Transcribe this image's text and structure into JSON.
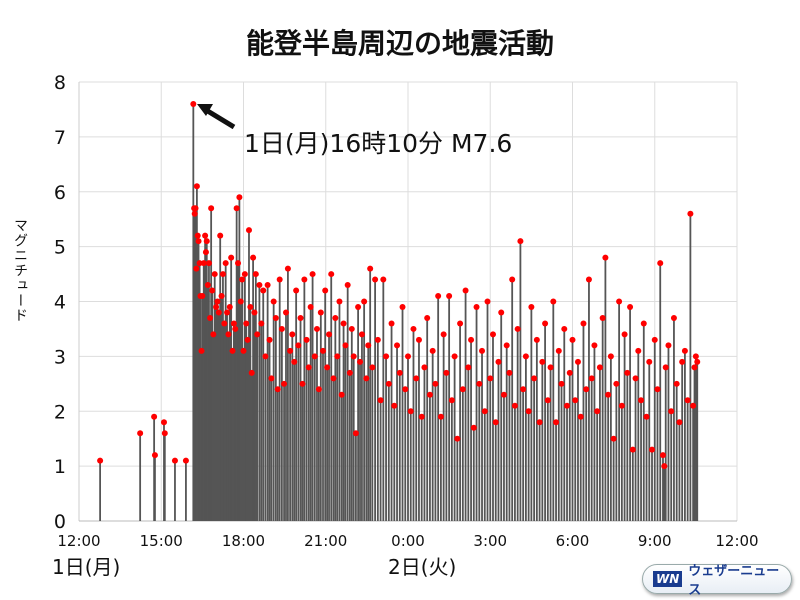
{
  "title": "能登半島周辺の地震活動",
  "annotation": "1日(月)16時10分 M7.6",
  "day_labels": [
    "1日(月)",
    "2日(火)"
  ],
  "logo": {
    "mark": "WN",
    "text": "ウェザーニュース"
  },
  "colors": {
    "point": "#ff0000",
    "stem": "#555555",
    "grid": "#dddddd"
  },
  "chart_data": {
    "type": "scatter",
    "title": "能登半島周辺の地震活動",
    "xlabel": "",
    "ylabel": "マグニチュード",
    "x_unit": "hours since 1日 12:00",
    "xlim": [
      0,
      24
    ],
    "ylim": [
      0,
      8
    ],
    "x_ticks": [
      0,
      3,
      6,
      9,
      12,
      15,
      18,
      21,
      24
    ],
    "x_tick_labels": [
      "12:00",
      "15:00",
      "18:00",
      "21:00",
      "0:00",
      "3:00",
      "6:00",
      "9:00",
      "12:00"
    ],
    "y_ticks": [
      0,
      1,
      2,
      3,
      4,
      5,
      6,
      7,
      8
    ],
    "y_tick_labels": [
      "0",
      "1",
      "2",
      "3",
      "4",
      "5",
      "6",
      "7",
      "8"
    ],
    "grid": true,
    "points": [
      [
        0.77,
        1.1
      ],
      [
        2.23,
        1.6
      ],
      [
        2.74,
        1.9
      ],
      [
        2.77,
        1.2
      ],
      [
        3.1,
        1.8
      ],
      [
        3.13,
        1.6
      ],
      [
        3.5,
        1.1
      ],
      [
        3.9,
        1.1
      ],
      [
        4.17,
        7.6
      ],
      [
        4.2,
        5.7
      ],
      [
        4.22,
        5.6
      ],
      [
        4.25,
        5.7
      ],
      [
        4.28,
        4.6
      ],
      [
        4.3,
        6.1
      ],
      [
        4.33,
        5.2
      ],
      [
        4.36,
        5.1
      ],
      [
        4.4,
        4.7
      ],
      [
        4.43,
        4.1
      ],
      [
        4.47,
        3.1
      ],
      [
        4.5,
        4.1
      ],
      [
        4.55,
        4.7
      ],
      [
        4.6,
        5.2
      ],
      [
        4.63,
        4.9
      ],
      [
        4.66,
        5.1
      ],
      [
        4.7,
        4.3
      ],
      [
        4.74,
        4.7
      ],
      [
        4.78,
        3.7
      ],
      [
        4.82,
        5.7
      ],
      [
        4.86,
        4.2
      ],
      [
        4.9,
        3.4
      ],
      [
        4.95,
        4.5
      ],
      [
        5.0,
        3.9
      ],
      [
        5.05,
        4.0
      ],
      [
        5.1,
        3.8
      ],
      [
        5.15,
        5.2
      ],
      [
        5.2,
        4.1
      ],
      [
        5.25,
        4.5
      ],
      [
        5.3,
        3.6
      ],
      [
        5.35,
        4.7
      ],
      [
        5.4,
        3.8
      ],
      [
        5.45,
        3.4
      ],
      [
        5.5,
        3.9
      ],
      [
        5.55,
        4.8
      ],
      [
        5.6,
        3.1
      ],
      [
        5.65,
        3.6
      ],
      [
        5.7,
        3.5
      ],
      [
        5.75,
        5.7
      ],
      [
        5.8,
        4.7
      ],
      [
        5.85,
        5.9
      ],
      [
        5.9,
        4.0
      ],
      [
        5.95,
        4.4
      ],
      [
        6.0,
        3.1
      ],
      [
        6.05,
        4.5
      ],
      [
        6.1,
        3.6
      ],
      [
        6.15,
        3.3
      ],
      [
        6.2,
        5.3
      ],
      [
        6.25,
        3.9
      ],
      [
        6.3,
        2.7
      ],
      [
        6.35,
        4.8
      ],
      [
        6.4,
        3.8
      ],
      [
        6.45,
        4.5
      ],
      [
        6.5,
        3.4
      ],
      [
        6.58,
        4.3
      ],
      [
        6.65,
        3.6
      ],
      [
        6.72,
        4.2
      ],
      [
        6.8,
        3.0
      ],
      [
        6.88,
        4.3
      ],
      [
        6.95,
        3.3
      ],
      [
        7.02,
        2.6
      ],
      [
        7.1,
        4.0
      ],
      [
        7.18,
        3.7
      ],
      [
        7.25,
        2.4
      ],
      [
        7.32,
        4.4
      ],
      [
        7.4,
        3.5
      ],
      [
        7.48,
        2.5
      ],
      [
        7.55,
        3.8
      ],
      [
        7.62,
        4.6
      ],
      [
        7.7,
        3.1
      ],
      [
        7.78,
        3.4
      ],
      [
        7.85,
        2.9
      ],
      [
        7.92,
        4.2
      ],
      [
        8.0,
        3.2
      ],
      [
        8.08,
        3.7
      ],
      [
        8.15,
        2.5
      ],
      [
        8.22,
        4.4
      ],
      [
        8.3,
        3.3
      ],
      [
        8.38,
        2.8
      ],
      [
        8.45,
        3.9
      ],
      [
        8.52,
        4.5
      ],
      [
        8.6,
        3.0
      ],
      [
        8.68,
        3.5
      ],
      [
        8.75,
        2.4
      ],
      [
        8.82,
        3.8
      ],
      [
        8.9,
        3.1
      ],
      [
        8.98,
        4.2
      ],
      [
        9.05,
        2.8
      ],
      [
        9.12,
        3.4
      ],
      [
        9.2,
        4.5
      ],
      [
        9.28,
        2.6
      ],
      [
        9.35,
        3.7
      ],
      [
        9.42,
        3.0
      ],
      [
        9.5,
        4.0
      ],
      [
        9.58,
        2.3
      ],
      [
        9.65,
        3.6
      ],
      [
        9.72,
        3.2
      ],
      [
        9.8,
        4.3
      ],
      [
        9.88,
        2.7
      ],
      [
        9.95,
        3.5
      ],
      [
        10.02,
        3.0
      ],
      [
        10.1,
        1.6
      ],
      [
        10.18,
        3.9
      ],
      [
        10.25,
        2.9
      ],
      [
        10.32,
        3.4
      ],
      [
        10.4,
        4.0
      ],
      [
        10.48,
        2.6
      ],
      [
        10.55,
        3.2
      ],
      [
        10.62,
        4.6
      ],
      [
        10.7,
        2.8
      ],
      [
        10.8,
        4.4
      ],
      [
        10.9,
        3.3
      ],
      [
        11.0,
        2.2
      ],
      [
        11.1,
        4.4
      ],
      [
        11.2,
        3.0
      ],
      [
        11.3,
        2.5
      ],
      [
        11.4,
        3.6
      ],
      [
        11.5,
        2.1
      ],
      [
        11.6,
        3.2
      ],
      [
        11.7,
        2.7
      ],
      [
        11.8,
        3.9
      ],
      [
        11.9,
        2.4
      ],
      [
        12.0,
        3.0
      ],
      [
        12.1,
        2.0
      ],
      [
        12.2,
        3.5
      ],
      [
        12.3,
        2.6
      ],
      [
        12.4,
        3.3
      ],
      [
        12.5,
        1.9
      ],
      [
        12.6,
        2.8
      ],
      [
        12.7,
        3.7
      ],
      [
        12.8,
        2.3
      ],
      [
        12.9,
        3.1
      ],
      [
        13.0,
        2.5
      ],
      [
        13.1,
        4.1
      ],
      [
        13.2,
        1.9
      ],
      [
        13.3,
        3.4
      ],
      [
        13.4,
        2.7
      ],
      [
        13.5,
        4.1
      ],
      [
        13.6,
        2.2
      ],
      [
        13.7,
        3.0
      ],
      [
        13.8,
        1.5
      ],
      [
        13.9,
        3.6
      ],
      [
        14.0,
        2.4
      ],
      [
        14.1,
        4.2
      ],
      [
        14.2,
        2.8
      ],
      [
        14.3,
        3.3
      ],
      [
        14.4,
        1.7
      ],
      [
        14.5,
        3.9
      ],
      [
        14.6,
        2.5
      ],
      [
        14.7,
        3.1
      ],
      [
        14.8,
        2.0
      ],
      [
        14.9,
        4.0
      ],
      [
        15.0,
        2.6
      ],
      [
        15.1,
        3.4
      ],
      [
        15.2,
        1.8
      ],
      [
        15.3,
        2.9
      ],
      [
        15.4,
        3.8
      ],
      [
        15.5,
        2.3
      ],
      [
        15.6,
        3.2
      ],
      [
        15.7,
        2.7
      ],
      [
        15.8,
        4.4
      ],
      [
        15.9,
        2.1
      ],
      [
        16.0,
        3.5
      ],
      [
        16.1,
        5.1
      ],
      [
        16.2,
        2.4
      ],
      [
        16.3,
        3.0
      ],
      [
        16.4,
        2.0
      ],
      [
        16.5,
        3.9
      ],
      [
        16.6,
        2.6
      ],
      [
        16.7,
        3.3
      ],
      [
        16.8,
        1.8
      ],
      [
        16.9,
        2.9
      ],
      [
        17.0,
        3.6
      ],
      [
        17.1,
        2.2
      ],
      [
        17.2,
        2.8
      ],
      [
        17.3,
        4.0
      ],
      [
        17.4,
        1.8
      ],
      [
        17.5,
        3.1
      ],
      [
        17.6,
        2.5
      ],
      [
        17.7,
        3.5
      ],
      [
        17.8,
        2.1
      ],
      [
        17.9,
        2.7
      ],
      [
        18.0,
        3.3
      ],
      [
        18.1,
        2.2
      ],
      [
        18.2,
        2.9
      ],
      [
        18.3,
        1.9
      ],
      [
        18.4,
        3.6
      ],
      [
        18.5,
        2.4
      ],
      [
        18.6,
        4.4
      ],
      [
        18.7,
        2.6
      ],
      [
        18.8,
        3.2
      ],
      [
        18.9,
        2.0
      ],
      [
        19.0,
        2.8
      ],
      [
        19.1,
        3.7
      ],
      [
        19.2,
        4.8
      ],
      [
        19.3,
        2.3
      ],
      [
        19.4,
        3.0
      ],
      [
        19.5,
        1.5
      ],
      [
        19.6,
        2.5
      ],
      [
        19.7,
        4.0
      ],
      [
        19.8,
        2.1
      ],
      [
        19.9,
        3.4
      ],
      [
        20.0,
        2.7
      ],
      [
        20.1,
        3.9
      ],
      [
        20.2,
        1.3
      ],
      [
        20.3,
        2.6
      ],
      [
        20.4,
        3.1
      ],
      [
        20.5,
        2.2
      ],
      [
        20.6,
        3.6
      ],
      [
        20.7,
        1.9
      ],
      [
        20.8,
        2.9
      ],
      [
        20.9,
        1.3
      ],
      [
        21.0,
        3.3
      ],
      [
        21.1,
        2.4
      ],
      [
        21.2,
        4.7
      ],
      [
        21.3,
        1.2
      ],
      [
        21.35,
        1.0
      ],
      [
        21.4,
        2.8
      ],
      [
        21.5,
        3.2
      ],
      [
        21.6,
        2.0
      ],
      [
        21.7,
        3.7
      ],
      [
        21.8,
        2.5
      ],
      [
        21.9,
        1.8
      ],
      [
        22.0,
        2.9
      ],
      [
        22.1,
        3.1
      ],
      [
        22.2,
        2.2
      ],
      [
        22.3,
        5.6
      ],
      [
        22.4,
        2.1
      ],
      [
        22.45,
        2.8
      ],
      [
        22.5,
        3.0
      ],
      [
        22.55,
        2.9
      ]
    ]
  }
}
